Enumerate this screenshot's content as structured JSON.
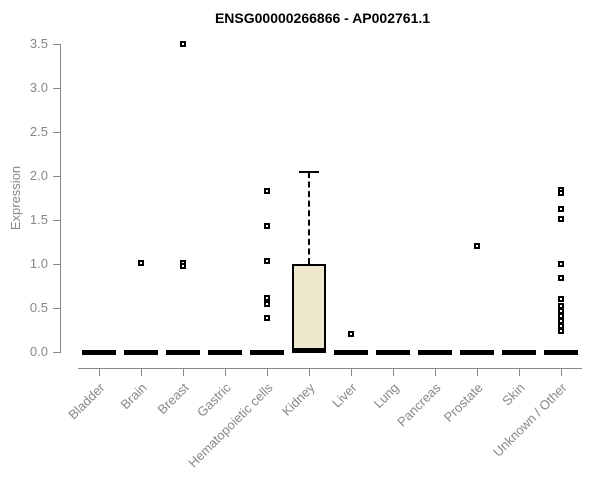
{
  "chart_data": {
    "type": "boxplot",
    "title": "ENSG00000266866 - AP002761.1",
    "ylabel": "Expression",
    "xlabel": "",
    "ylim": [
      0,
      3.5
    ],
    "yticks": [
      "0.0",
      "0.5",
      "1.0",
      "1.5",
      "2.0",
      "2.5",
      "3.0",
      "3.5"
    ],
    "grid": false,
    "legend": false,
    "colors": {
      "box_fill": "#EEE8CE",
      "box_border": "#000000",
      "axis": "#888888",
      "tick_label": "#888888",
      "title": "#000000",
      "marker": "#000000"
    },
    "categories": [
      "Bladder",
      "Brain",
      "Breast",
      "Gastric",
      "Hematopoietic cells",
      "Kidney",
      "Liver",
      "Lung",
      "Pancreas",
      "Prostate",
      "Skin",
      "Unknown / Other"
    ],
    "boxes": [
      {
        "category": "Bladder",
        "q1": 0,
        "median": 0,
        "q3": 0,
        "whisker_low": 0,
        "whisker_high": 0,
        "outliers": []
      },
      {
        "category": "Brain",
        "q1": 0,
        "median": 0,
        "q3": 0,
        "whisker_low": 0,
        "whisker_high": 0,
        "outliers": [
          1.01
        ]
      },
      {
        "category": "Breast",
        "q1": 0,
        "median": 0,
        "q3": 0,
        "whisker_low": 0,
        "whisker_high": 0,
        "outliers": [
          3.5,
          1.01,
          0.98
        ]
      },
      {
        "category": "Gastric",
        "q1": 0,
        "median": 0,
        "q3": 0,
        "whisker_low": 0,
        "whisker_high": 0,
        "outliers": []
      },
      {
        "category": "Hematopoietic cells",
        "q1": 0,
        "median": 0,
        "q3": 0,
        "whisker_low": 0,
        "whisker_high": 0,
        "outliers": [
          1.83,
          1.43,
          1.03,
          0.61,
          0.55,
          0.39
        ]
      },
      {
        "category": "Kidney",
        "q1": 0,
        "median": 0.02,
        "q3": 1.0,
        "whisker_low": 0,
        "whisker_high": 2.05,
        "outliers": []
      },
      {
        "category": "Liver",
        "q1": 0,
        "median": 0,
        "q3": 0,
        "whisker_low": 0,
        "whisker_high": 0,
        "outliers": [
          0.2
        ]
      },
      {
        "category": "Lung",
        "q1": 0,
        "median": 0,
        "q3": 0,
        "whisker_low": 0,
        "whisker_high": 0,
        "outliers": []
      },
      {
        "category": "Pancreas",
        "q1": 0,
        "median": 0,
        "q3": 0,
        "whisker_low": 0,
        "whisker_high": 0,
        "outliers": []
      },
      {
        "category": "Prostate",
        "q1": 0,
        "median": 0,
        "q3": 0,
        "whisker_low": 0,
        "whisker_high": 0,
        "outliers": [
          1.21
        ]
      },
      {
        "category": "Skin",
        "q1": 0,
        "median": 0,
        "q3": 0,
        "whisker_low": 0,
        "whisker_high": 0,
        "outliers": []
      },
      {
        "category": "Unknown / Other",
        "q1": 0,
        "median": 0,
        "q3": 0,
        "whisker_low": 0,
        "whisker_high": 0,
        "outliers": [
          1.84,
          1.81,
          1.63,
          1.51,
          1.0,
          0.84,
          0.6,
          0.52,
          0.47,
          0.41,
          0.35,
          0.3,
          0.24
        ]
      }
    ]
  }
}
